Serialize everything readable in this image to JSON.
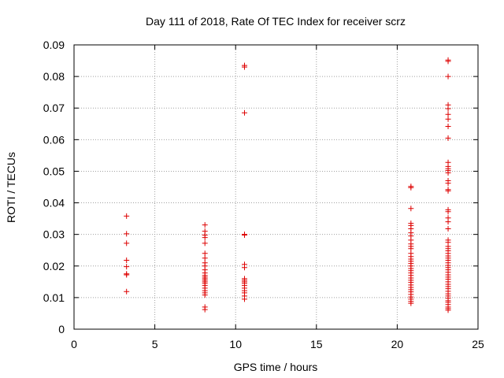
{
  "chart_data": {
    "type": "scatter",
    "title": "Day 111 of 2018, Rate Of TEC Index for receiver scrz",
    "xlabel": "GPS time / hours",
    "ylabel": "ROTI / TECUs",
    "xlim": [
      0,
      25
    ],
    "ylim": [
      0,
      0.09
    ],
    "x_ticks": [
      0,
      5,
      10,
      15,
      20,
      25
    ],
    "x_tick_labels": [
      "0",
      "5",
      "10",
      "15",
      "20",
      "25"
    ],
    "y_ticks": [
      0,
      0.01,
      0.02,
      0.03,
      0.04,
      0.05,
      0.06,
      0.07,
      0.08,
      0.09
    ],
    "y_tick_labels": [
      "0",
      "0.01",
      "0.02",
      "0.03",
      "0.04",
      "0.05",
      "0.06",
      "0.07",
      "0.08",
      "0.09"
    ],
    "grid": true,
    "marker": "+",
    "color": "#dd0000",
    "series": [
      {
        "name": "ROTI",
        "points": [
          [
            3.25,
            0.0358
          ],
          [
            3.25,
            0.0302
          ],
          [
            3.25,
            0.0272
          ],
          [
            3.25,
            0.0218
          ],
          [
            3.25,
            0.0198
          ],
          [
            3.25,
            0.0175
          ],
          [
            3.25,
            0.0172
          ],
          [
            3.25,
            0.0119
          ],
          [
            8.1,
            0.033
          ],
          [
            8.1,
            0.031
          ],
          [
            8.1,
            0.0298
          ],
          [
            8.1,
            0.029
          ],
          [
            8.1,
            0.0272
          ],
          [
            8.1,
            0.024
          ],
          [
            8.1,
            0.0225
          ],
          [
            8.1,
            0.021
          ],
          [
            8.1,
            0.02
          ],
          [
            8.1,
            0.0188
          ],
          [
            8.1,
            0.0178
          ],
          [
            8.1,
            0.017
          ],
          [
            8.1,
            0.0165
          ],
          [
            8.1,
            0.016
          ],
          [
            8.1,
            0.0155
          ],
          [
            8.1,
            0.015
          ],
          [
            8.1,
            0.0145
          ],
          [
            8.1,
            0.0138
          ],
          [
            8.1,
            0.013
          ],
          [
            8.1,
            0.0122
          ],
          [
            8.1,
            0.0115
          ],
          [
            8.1,
            0.0108
          ],
          [
            8.1,
            0.007
          ],
          [
            8.1,
            0.0062
          ],
          [
            10.55,
            0.0835
          ],
          [
            10.55,
            0.083
          ],
          [
            10.55,
            0.0685
          ],
          [
            10.55,
            0.03
          ],
          [
            10.55,
            0.0298
          ],
          [
            10.55,
            0.0205
          ],
          [
            10.55,
            0.0195
          ],
          [
            10.55,
            0.016
          ],
          [
            10.55,
            0.0155
          ],
          [
            10.55,
            0.015
          ],
          [
            10.55,
            0.0145
          ],
          [
            10.55,
            0.0138
          ],
          [
            10.55,
            0.013
          ],
          [
            10.55,
            0.0122
          ],
          [
            10.55,
            0.0115
          ],
          [
            10.55,
            0.0105
          ],
          [
            10.55,
            0.0095
          ],
          [
            20.85,
            0.0452
          ],
          [
            20.85,
            0.0448
          ],
          [
            20.85,
            0.0382
          ],
          [
            20.85,
            0.0335
          ],
          [
            20.85,
            0.0328
          ],
          [
            20.85,
            0.0318
          ],
          [
            20.85,
            0.0305
          ],
          [
            20.85,
            0.0295
          ],
          [
            20.85,
            0.0282
          ],
          [
            20.85,
            0.027
          ],
          [
            20.85,
            0.0262
          ],
          [
            20.85,
            0.0255
          ],
          [
            20.85,
            0.024
          ],
          [
            20.85,
            0.023
          ],
          [
            20.85,
            0.0222
          ],
          [
            20.85,
            0.0215
          ],
          [
            20.85,
            0.0208
          ],
          [
            20.85,
            0.02
          ],
          [
            20.85,
            0.0192
          ],
          [
            20.85,
            0.0185
          ],
          [
            20.85,
            0.0178
          ],
          [
            20.85,
            0.017
          ],
          [
            20.85,
            0.0162
          ],
          [
            20.85,
            0.0155
          ],
          [
            20.85,
            0.0148
          ],
          [
            20.85,
            0.014
          ],
          [
            20.85,
            0.0132
          ],
          [
            20.85,
            0.0125
          ],
          [
            20.85,
            0.0118
          ],
          [
            20.85,
            0.011
          ],
          [
            20.85,
            0.0102
          ],
          [
            20.85,
            0.0095
          ],
          [
            20.85,
            0.0088
          ],
          [
            20.85,
            0.0082
          ],
          [
            23.15,
            0.0852
          ],
          [
            23.15,
            0.0848
          ],
          [
            23.15,
            0.08
          ],
          [
            23.15,
            0.071
          ],
          [
            23.15,
            0.0698
          ],
          [
            23.15,
            0.068
          ],
          [
            23.15,
            0.0665
          ],
          [
            23.15,
            0.0642
          ],
          [
            23.15,
            0.0605
          ],
          [
            23.15,
            0.0528
          ],
          [
            23.15,
            0.0515
          ],
          [
            23.15,
            0.0508
          ],
          [
            23.15,
            0.0502
          ],
          [
            23.15,
            0.0495
          ],
          [
            23.15,
            0.047
          ],
          [
            23.15,
            0.0462
          ],
          [
            23.15,
            0.0442
          ],
          [
            23.15,
            0.0438
          ],
          [
            23.15,
            0.0378
          ],
          [
            23.15,
            0.0372
          ],
          [
            23.15,
            0.0352
          ],
          [
            23.15,
            0.034
          ],
          [
            23.15,
            0.0318
          ],
          [
            23.15,
            0.0282
          ],
          [
            23.15,
            0.0275
          ],
          [
            23.15,
            0.0262
          ],
          [
            23.15,
            0.0255
          ],
          [
            23.15,
            0.0248
          ],
          [
            23.15,
            0.024
          ],
          [
            23.15,
            0.0232
          ],
          [
            23.15,
            0.0225
          ],
          [
            23.15,
            0.0218
          ],
          [
            23.15,
            0.021
          ],
          [
            23.15,
            0.0202
          ],
          [
            23.15,
            0.0195
          ],
          [
            23.15,
            0.0188
          ],
          [
            23.15,
            0.018
          ],
          [
            23.15,
            0.0172
          ],
          [
            23.15,
            0.0165
          ],
          [
            23.15,
            0.0158
          ],
          [
            23.15,
            0.015
          ],
          [
            23.15,
            0.0142
          ],
          [
            23.15,
            0.0135
          ],
          [
            23.15,
            0.0128
          ],
          [
            23.15,
            0.012
          ],
          [
            23.15,
            0.0112
          ],
          [
            23.15,
            0.0105
          ],
          [
            23.15,
            0.0098
          ],
          [
            23.15,
            0.009
          ],
          [
            23.15,
            0.0085
          ],
          [
            23.15,
            0.0078
          ],
          [
            23.15,
            0.007
          ],
          [
            23.15,
            0.0065
          ],
          [
            23.15,
            0.006
          ]
        ]
      }
    ]
  }
}
